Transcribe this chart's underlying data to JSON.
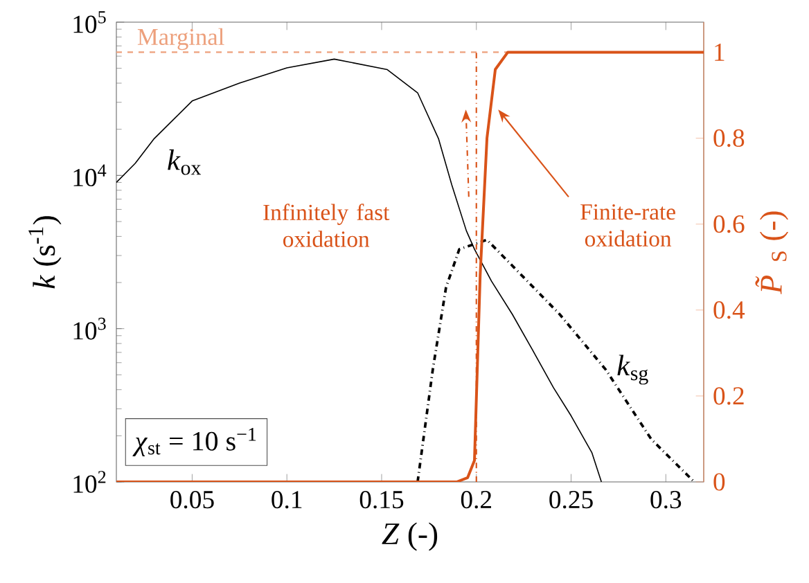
{
  "chart_data": {
    "type": "line",
    "xlabel": "*Z* (-)",
    "ylabel": "*k* (s$^{-1}$)",
    "y2label": "*P̃*$_{S}$ (-)",
    "log": "y",
    "xlim": [
      0.01,
      0.32
    ],
    "xticks": [
      0.05,
      0.1,
      0.15,
      0.2,
      0.25,
      0.3
    ],
    "ylim": [
      100,
      100000
    ],
    "yticks": [
      {
        "value": 100,
        "label": "10$^{2}$"
      },
      {
        "value": 1000,
        "label": "10$^{3}$"
      },
      {
        "value": 10000,
        "label": "10$^{4}$"
      },
      {
        "value": 100000,
        "label": "10$^{5}$"
      }
    ],
    "y2lim": [
      0,
      1.07
    ],
    "y2ticks": [
      0,
      0.2,
      0.4,
      0.6,
      0.8,
      1
    ],
    "marker": "none",
    "series": [
      {
        "name": "*k*$_{ox}$",
        "color": "#000000",
        "line_style": "solid",
        "x": [
          0.01,
          0.02,
          0.03,
          0.05,
          0.075,
          0.1,
          0.125,
          0.153,
          0.169,
          0.18,
          0.187,
          0.1947,
          0.199,
          0.208,
          0.219,
          0.2297,
          0.2407,
          0.25,
          0.261,
          0.266
        ],
        "values": [
          9000,
          12000,
          17400,
          30600,
          40000,
          50300,
          57400,
          49000,
          34600,
          17400,
          8700,
          4360,
          3300,
          2040,
          1240,
          724,
          412,
          270,
          155,
          100
        ]
      },
      {
        "name": "*k*$_{sg}$",
        "color": "#000000",
        "line_style": "dashdot",
        "x": [
          0.169,
          0.177,
          0.184,
          0.191,
          0.2056,
          0.22,
          0.244,
          0.2683,
          0.2923,
          0.315
        ],
        "values": [
          100,
          540,
          1860,
          3300,
          3800,
          2500,
          1240,
          540,
          190,
          100
        ]
      },
      {
        "color": "#d95319",
        "line_style": "solid",
        "axis": "y2",
        "x": [
          0.01,
          0.1896,
          0.1954,
          0.199,
          0.202,
          0.2056,
          0.21,
          0.2166,
          0.32
        ],
        "values": [
          0,
          0,
          0.01,
          0.05,
          0.48,
          0.8,
          0.96,
          1,
          1
        ]
      },
      {
        "color": "#d95319",
        "line_style": "dashdot",
        "axis": "y2",
        "x": [
          0.2,
          0.2
        ],
        "values": [
          0,
          1
        ]
      }
    ],
    "ref_lines": [
      {
        "axis": "y2",
        "value": 1,
        "label": "Marginal",
        "color": "#eda07c",
        "line_style": "dashed"
      }
    ],
    "annotations": [
      "Infinitely fast oxidation",
      "Finite-rate oxidation",
      "*χ*$_{st}$ = 10 s$^{−1}$"
    ]
  }
}
